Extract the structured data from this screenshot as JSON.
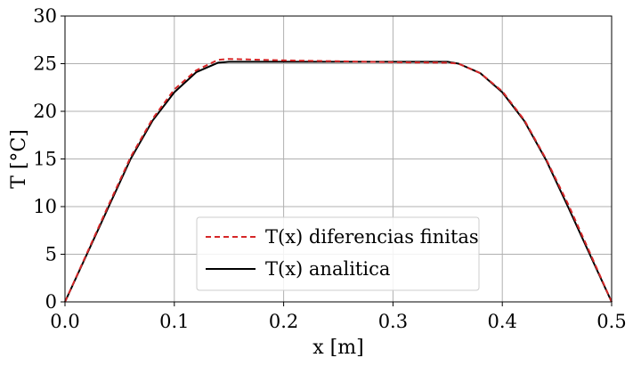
{
  "chart_data": {
    "type": "line",
    "title": "",
    "xlabel": "x [m]",
    "ylabel": "T [°C]",
    "xlim": [
      0.0,
      0.5
    ],
    "ylim": [
      0,
      30
    ],
    "x_ticks": [
      "0.0",
      "0.1",
      "0.2",
      "0.3",
      "0.4",
      "0.5"
    ],
    "y_ticks": [
      "0",
      "5",
      "10",
      "15",
      "20",
      "25",
      "30"
    ],
    "grid": true,
    "legend_position": "bottom-center",
    "series": [
      {
        "name": "T(x) diferencias finitas",
        "style": "dashed",
        "color": "#d62728",
        "x": [
          0.0,
          0.02,
          0.04,
          0.06,
          0.08,
          0.1,
          0.12,
          0.14,
          0.15,
          0.2,
          0.25,
          0.3,
          0.35,
          0.36,
          0.38,
          0.4,
          0.42,
          0.44,
          0.46,
          0.48,
          0.5
        ],
        "y": [
          0.0,
          5.1,
          10.2,
          15.2,
          19.2,
          22.3,
          24.3,
          25.4,
          25.5,
          25.35,
          25.25,
          25.15,
          25.1,
          25.0,
          24.0,
          22.1,
          19.1,
          15.0,
          10.3,
          5.2,
          0.0
        ]
      },
      {
        "name": "T(x) analitica",
        "style": "solid",
        "color": "#000000",
        "x": [
          0.0,
          0.02,
          0.04,
          0.06,
          0.08,
          0.1,
          0.12,
          0.14,
          0.15,
          0.2,
          0.25,
          0.3,
          0.35,
          0.36,
          0.38,
          0.4,
          0.42,
          0.44,
          0.46,
          0.48,
          0.5
        ],
        "y": [
          0.0,
          5.0,
          10.0,
          15.0,
          19.0,
          22.0,
          24.1,
          25.1,
          25.2,
          25.2,
          25.2,
          25.2,
          25.2,
          25.0,
          24.0,
          22.0,
          19.0,
          14.9,
          10.0,
          5.0,
          0.0
        ]
      }
    ]
  }
}
